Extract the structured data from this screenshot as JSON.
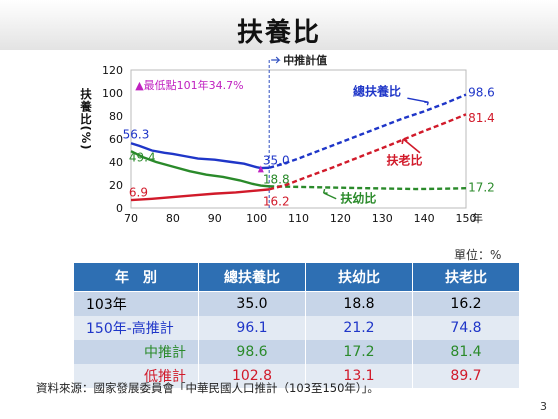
{
  "title": "扶養比",
  "chart_data": {
    "type": "line",
    "ylabel": "扶養比(%)",
    "xunit": "年",
    "xlim": [
      70,
      150
    ],
    "ylim": [
      0,
      120
    ],
    "xticks": [
      70,
      80,
      90,
      100,
      110,
      120,
      130,
      140,
      150
    ],
    "yticks": [
      0,
      20,
      40,
      60,
      80,
      100,
      120
    ],
    "projection_label": "中推計值",
    "projection_start": 103,
    "min_annotation": "▲最低點101年34.7%",
    "series": [
      {
        "name": "總扶養比",
        "color": "#1f36c8",
        "x": [
          70,
          72,
          75,
          78,
          80,
          83,
          86,
          90,
          94,
          97,
          100,
          101,
          103,
          106,
          110,
          115,
          120,
          125,
          130,
          135,
          140,
          145,
          150
        ],
        "y": [
          56.3,
          54,
          50,
          48,
          47,
          45,
          43,
          42,
          40,
          38.5,
          35.5,
          34.7,
          35.0,
          38,
          43,
          50,
          57,
          64,
          71,
          78,
          84,
          91,
          98.6
        ]
      },
      {
        "name": "扶幼比",
        "color": "#2a8a2a",
        "x": [
          70,
          73,
          76,
          80,
          84,
          88,
          92,
          96,
          99,
          101,
          103,
          108,
          115,
          122,
          130,
          138,
          145,
          150
        ],
        "y": [
          49.4,
          44,
          40,
          36,
          32,
          29,
          27,
          24,
          21,
          19.5,
          18.8,
          18.5,
          18,
          17.5,
          17,
          16.5,
          16.8,
          17.2
        ]
      },
      {
        "name": "扶老比",
        "color": "#d11a2a",
        "x": [
          70,
          75,
          80,
          85,
          90,
          95,
          100,
          103,
          107,
          112,
          118,
          125,
          132,
          140,
          145,
          150
        ],
        "y": [
          6.9,
          8,
          9.5,
          11,
          12.5,
          13.5,
          15.2,
          16.2,
          20,
          27,
          35,
          45,
          55,
          67,
          74,
          81.4
        ]
      }
    ],
    "data_labels": {
      "start_total": "56.3",
      "start_young": "49.4",
      "start_old": "6.9",
      "p103_total": "35.0",
      "p103_young": "18.8",
      "p103_old": "16.2",
      "end_total": "98.6",
      "end_old": "81.4",
      "end_young": "17.2"
    }
  },
  "unit_label": "單位：%",
  "table": {
    "headers": [
      "年　別",
      "總扶養比",
      "扶幼比",
      "扶老比"
    ],
    "rows": [
      {
        "label": "103年",
        "values": [
          "35.0",
          "18.8",
          "16.2"
        ]
      },
      {
        "label": "150年-高推計",
        "values": [
          "96.1",
          "21.2",
          "74.8"
        ]
      },
      {
        "label": "中推計",
        "values": [
          "98.6",
          "17.2",
          "81.4"
        ]
      },
      {
        "label": "低推計",
        "values": [
          "102.8",
          "13.1",
          "89.7"
        ]
      }
    ]
  },
  "source": "資料來源：國家發展委員會「中華民國人口推計（103至150年）」。",
  "page_number": "3"
}
